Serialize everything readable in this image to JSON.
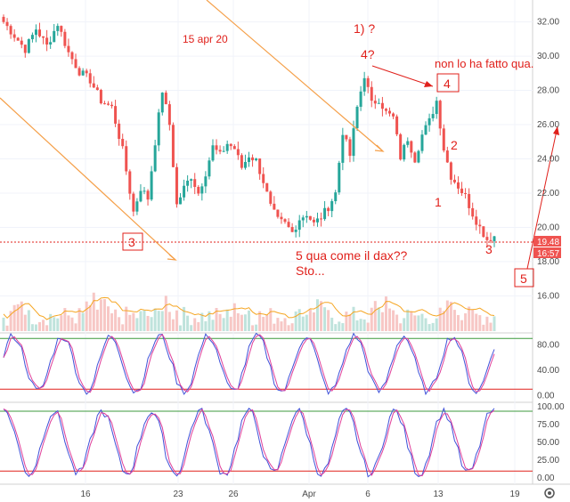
{
  "chart_data": [
    {
      "type": "candlestick",
      "pane": "price",
      "x_tick_labels": [
        "16",
        "23",
        "26",
        "Apr",
        "6",
        "13",
        "19"
      ],
      "y_tick_labels": [
        "32.00",
        "30.00",
        "28.00",
        "26.00",
        "24.00",
        "22.00",
        "20.00",
        "18.00",
        "16.00"
      ],
      "ylim": [
        15.5,
        32.5
      ],
      "last_price_label": "19.48",
      "countdown_label": "16:57",
      "close_path": [
        {
          "i": 0,
          "v": 32.0
        },
        {
          "i": 3,
          "v": 31.2
        },
        {
          "i": 6,
          "v": 30.4
        },
        {
          "i": 9,
          "v": 31.6
        },
        {
          "i": 12,
          "v": 30.6
        },
        {
          "i": 15,
          "v": 31.9
        },
        {
          "i": 18,
          "v": 30.2
        },
        {
          "i": 21,
          "v": 29.1
        },
        {
          "i": 24,
          "v": 28.6
        },
        {
          "i": 27,
          "v": 27.4
        },
        {
          "i": 30,
          "v": 27.0
        },
        {
          "i": 33,
          "v": 24.5
        },
        {
          "i": 36,
          "v": 20.9
        },
        {
          "i": 38,
          "v": 22.3
        },
        {
          "i": 40,
          "v": 21.7
        },
        {
          "i": 42,
          "v": 25.0
        },
        {
          "i": 44,
          "v": 28.0
        },
        {
          "i": 46,
          "v": 26.0
        },
        {
          "i": 48,
          "v": 21.3
        },
        {
          "i": 50,
          "v": 22.3
        },
        {
          "i": 52,
          "v": 23.0
        },
        {
          "i": 54,
          "v": 22.0
        },
        {
          "i": 56,
          "v": 23.2
        },
        {
          "i": 58,
          "v": 24.7
        },
        {
          "i": 60,
          "v": 24.2
        },
        {
          "i": 62,
          "v": 24.9
        },
        {
          "i": 64,
          "v": 24.6
        },
        {
          "i": 66,
          "v": 23.5
        },
        {
          "i": 68,
          "v": 24.2
        },
        {
          "i": 70,
          "v": 23.9
        },
        {
          "i": 72,
          "v": 22.7
        },
        {
          "i": 74,
          "v": 21.2
        },
        {
          "i": 76,
          "v": 20.4
        },
        {
          "i": 78,
          "v": 20.2
        },
        {
          "i": 80,
          "v": 19.7
        },
        {
          "i": 82,
          "v": 20.5
        },
        {
          "i": 84,
          "v": 20.8
        },
        {
          "i": 86,
          "v": 20.2
        },
        {
          "i": 88,
          "v": 20.6
        },
        {
          "i": 90,
          "v": 21.2
        },
        {
          "i": 92,
          "v": 22.0
        },
        {
          "i": 94,
          "v": 25.6
        },
        {
          "i": 96,
          "v": 24.2
        },
        {
          "i": 98,
          "v": 27.0
        },
        {
          "i": 100,
          "v": 28.9
        },
        {
          "i": 102,
          "v": 27.2
        },
        {
          "i": 104,
          "v": 27.5
        },
        {
          "i": 106,
          "v": 26.7
        },
        {
          "i": 108,
          "v": 26.4
        },
        {
          "i": 110,
          "v": 24.1
        },
        {
          "i": 112,
          "v": 25.2
        },
        {
          "i": 114,
          "v": 24.0
        },
        {
          "i": 116,
          "v": 25.4
        },
        {
          "i": 118,
          "v": 26.2
        },
        {
          "i": 120,
          "v": 27.4
        },
        {
          "i": 122,
          "v": 24.6
        },
        {
          "i": 124,
          "v": 23.0
        },
        {
          "i": 126,
          "v": 22.4
        },
        {
          "i": 128,
          "v": 21.8
        },
        {
          "i": 130,
          "v": 20.8
        },
        {
          "i": 132,
          "v": 20.0
        },
        {
          "i": 134,
          "v": 19.3
        },
        {
          "i": 136,
          "v": 19.48
        }
      ],
      "volume_ma_color": "#f5a623",
      "line_color_up": "#26a69a",
      "line_color_down": "#ef5350",
      "annotations": [
        {
          "text": "15 apr 20"
        },
        {
          "text": "1) ?"
        },
        {
          "text": "4?"
        },
        {
          "text": "non lo ha fatto qua."
        },
        {
          "text": "4"
        },
        {
          "text": "2"
        },
        {
          "text": "1"
        },
        {
          "text": "3"
        },
        {
          "text": "3"
        },
        {
          "text": "5"
        },
        {
          "text": "5 qua come il dax??"
        },
        {
          "text": "Sto..."
        }
      ]
    },
    {
      "type": "line",
      "pane": "oscillator-1",
      "y_tick_labels": [
        "80.00",
        "40.00",
        "0.00"
      ],
      "ylim": [
        -8,
        96
      ],
      "bands": [
        90,
        10
      ],
      "series": [
        {
          "color": "#3f51d9"
        },
        {
          "color": "#e0409a"
        }
      ]
    },
    {
      "type": "line",
      "pane": "oscillator-2",
      "y_tick_labels": [
        "100.00",
        "75.00",
        "50.00",
        "25.00",
        "0.00"
      ],
      "ylim": [
        -6,
        104
      ],
      "bands": [
        94,
        10
      ],
      "series": [
        {
          "color": "#3f51d9"
        },
        {
          "color": "#e0409a"
        }
      ]
    }
  ],
  "ui": {
    "settings_icon": "gear-icon"
  }
}
